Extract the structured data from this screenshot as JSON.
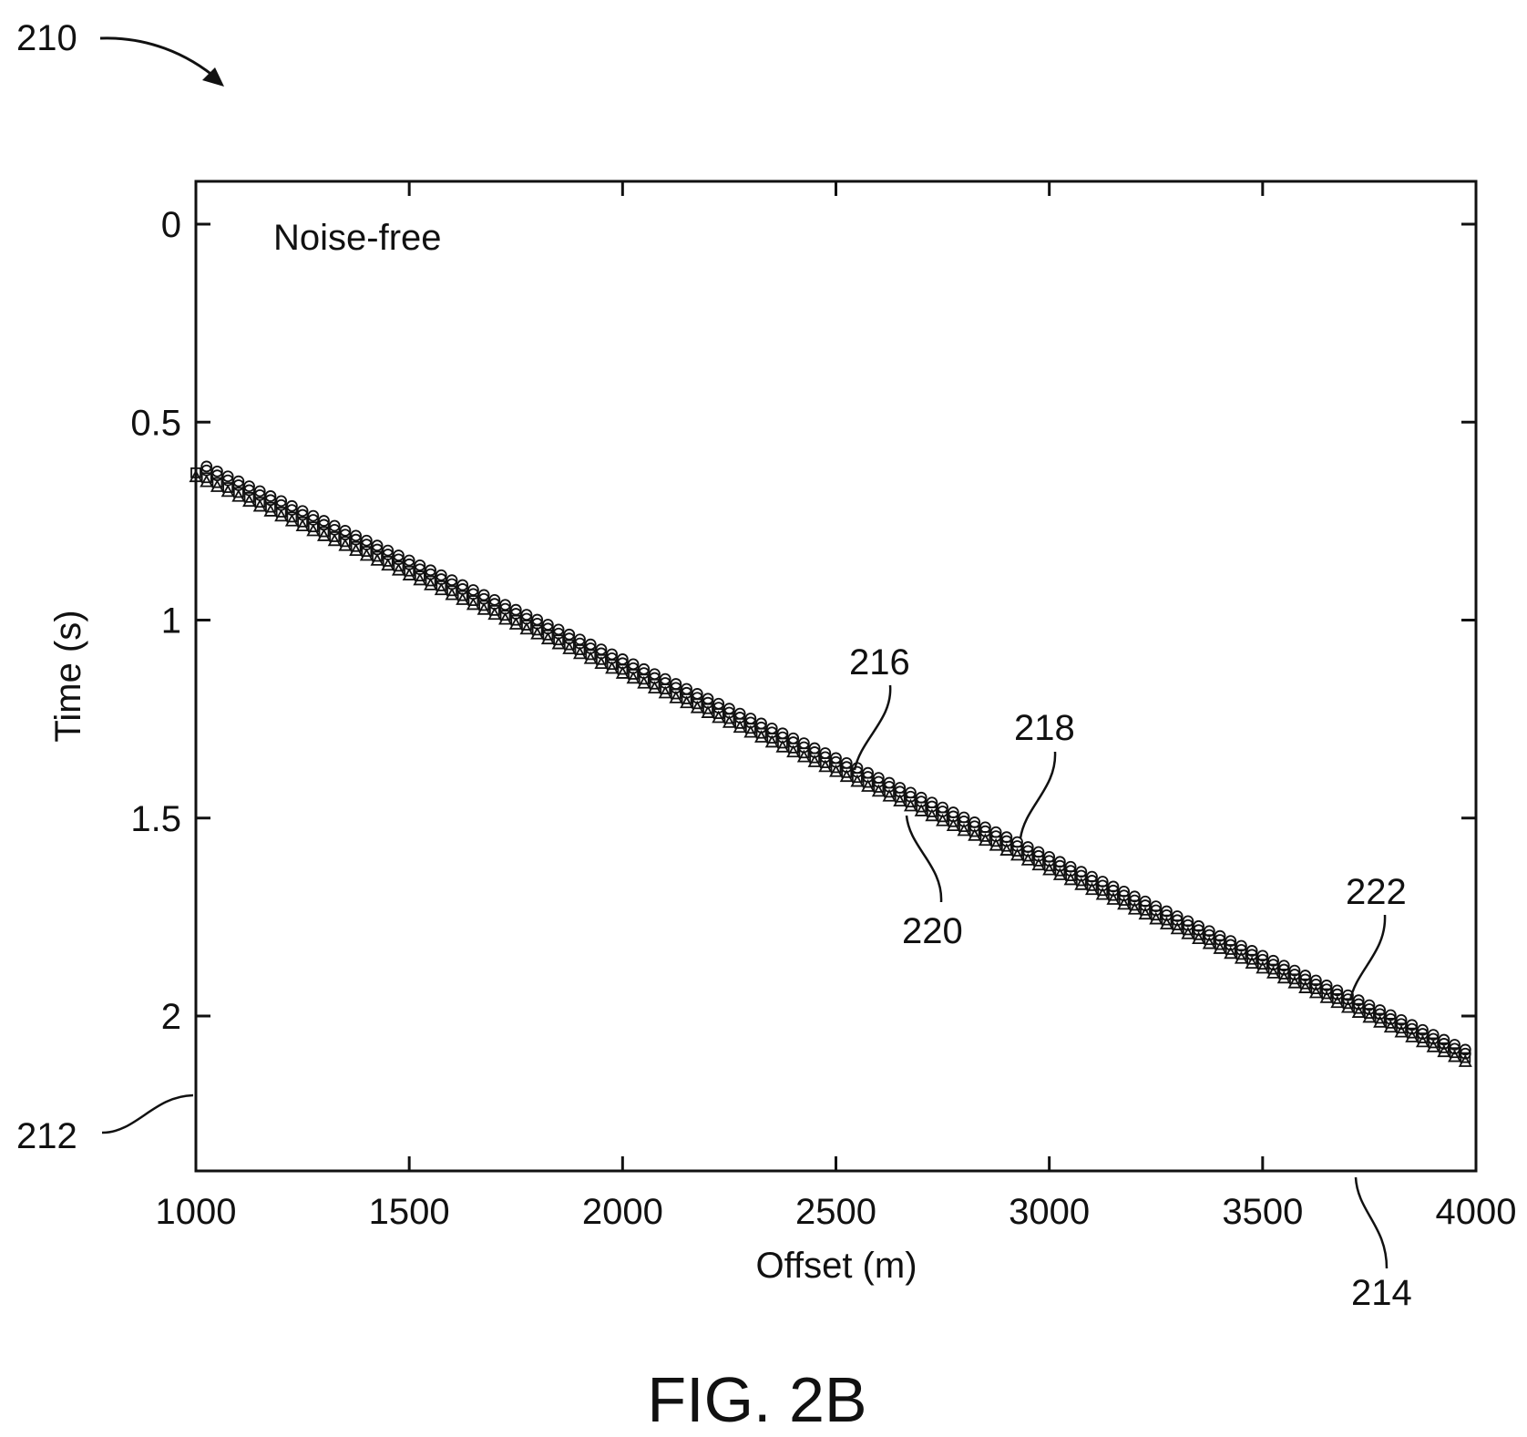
{
  "figure": {
    "caption": "FIG. 2B",
    "ref_numerals": {
      "figure": "210",
      "y_axis": "212",
      "x_axis": "214",
      "series_a": "216",
      "series_b": "218",
      "series_c": "220",
      "series_d": "222"
    }
  },
  "chart_data": {
    "type": "scatter",
    "title": "",
    "annotation": "Noise-free",
    "xlabel": "Offset (m)",
    "ylabel": "Time (s)",
    "xlim": [
      1000,
      4000
    ],
    "ylim": [
      0,
      2.4
    ],
    "y_inverted": true,
    "x_ticks": [
      1000,
      1500,
      2000,
      2500,
      3000,
      3500,
      4000
    ],
    "y_ticks": [
      0,
      0.5,
      1,
      1.5,
      2
    ],
    "x_tick_labels": [
      "1000",
      "1500",
      "2000",
      "2500",
      "3000",
      "3500",
      "4000"
    ],
    "y_tick_labels": [
      "0",
      "0.5",
      "1",
      "1.5",
      "2"
    ],
    "grid": false,
    "legend": "none",
    "marker_color": "#111111",
    "series": [
      {
        "marker": "circle",
        "x_start": 1025,
        "x_end": 3975,
        "x_step": 25,
        "y_start": 0.612,
        "y_end": 2.085
      },
      {
        "marker": "circle",
        "x_start": 1025,
        "x_end": 3975,
        "x_step": 25,
        "y_start": 0.622,
        "y_end": 2.095
      },
      {
        "marker": "square",
        "x_start": 1000,
        "x_end": 3975,
        "x_step": 25,
        "y_start": 0.628,
        "y_end": 2.105
      },
      {
        "marker": "triangle",
        "x_start": 1000,
        "x_end": 3975,
        "x_step": 25,
        "y_start": 0.638,
        "y_end": 2.115
      }
    ]
  }
}
